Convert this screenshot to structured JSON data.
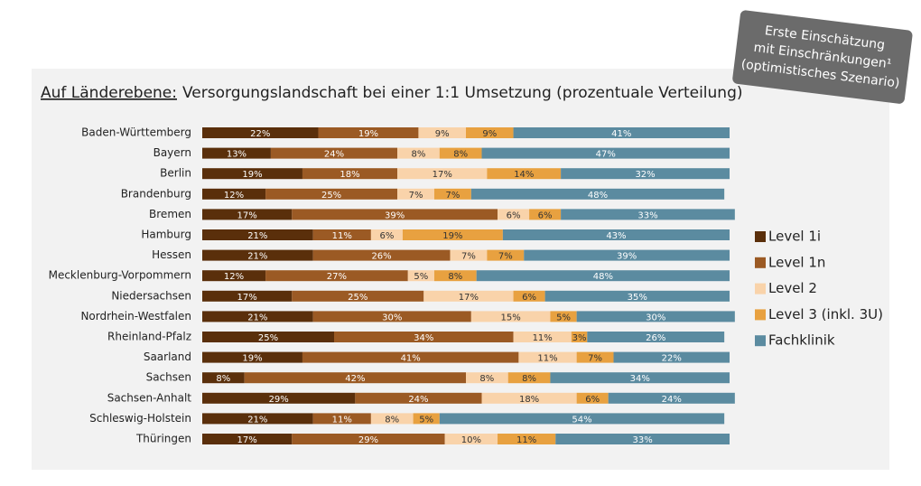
{
  "badge": {
    "lines": [
      "Erste Einschätzung",
      "mit Einschränkungen¹",
      "(optimistisches Szenario)"
    ]
  },
  "chart_data": {
    "type": "stacked-bar-horizontal",
    "title_lead": "Auf Länderebene:",
    "title": "Versorgungslandschaft bei einer 1:1 Umsetzung (prozentuale Verteilung)",
    "xlim": [
      0,
      100
    ],
    "categories": [
      "Baden-Württemberg",
      "Bayern",
      "Berlin",
      "Brandenburg",
      "Bremen",
      "Hamburg",
      "Hessen",
      "Mecklenburg-Vorpommern",
      "Niedersachsen",
      "Nordrhein-Westfalen",
      "Rheinland-Pfalz",
      "Saarland",
      "Sachsen",
      "Sachsen-Anhalt",
      "Schleswig-Holstein",
      "Thüringen"
    ],
    "series": [
      {
        "name": "Level 1i",
        "color": "#5a2f0b",
        "values": [
          22,
          13,
          19,
          12,
          17,
          21,
          21,
          12,
          17,
          21,
          25,
          19,
          8,
          29,
          21,
          17
        ],
        "value_labels": [
          "22%",
          "13%",
          "19%",
          "12%",
          "17%",
          "21%",
          "21%",
          "12%",
          "17%",
          "21%",
          "25%",
          "19%",
          "8%",
          "29%",
          "21%",
          "17%"
        ]
      },
      {
        "name": "Level 1n",
        "color": "#9b5a24",
        "values": [
          19,
          24,
          18,
          25,
          39,
          11,
          26,
          27,
          25,
          30,
          34,
          41,
          42,
          24,
          11,
          29
        ],
        "value_labels": [
          "19%",
          "24%",
          "18%",
          "25%",
          "39%",
          "11%",
          "26%",
          "27%",
          "25%",
          "30%",
          "34%",
          "41%",
          "42%",
          "24%",
          "11%",
          "29%"
        ]
      },
      {
        "name": "Level 2",
        "color": "#f9d3aa",
        "values": [
          9,
          8,
          17,
          7,
          6,
          6,
          7,
          5,
          17,
          15,
          11,
          11,
          8,
          18,
          8,
          10
        ],
        "value_labels": [
          "9%",
          "8%",
          "17%",
          "7%",
          "6%",
          "6%",
          "7%",
          "5%",
          "17%",
          "15%",
          "11%",
          "11%",
          "8%",
          "18%",
          "8%",
          "10%"
        ]
      },
      {
        "name": "Level 3 (inkl. 3U)",
        "color": "#e8a140",
        "values": [
          9,
          8,
          14,
          7,
          6,
          19,
          7,
          8,
          6,
          5,
          3,
          7,
          8,
          6,
          5,
          11
        ],
        "value_labels": [
          "9%",
          "8%",
          "14%",
          "7%",
          "6%",
          "19%",
          "7%",
          "8%",
          "6%",
          "5%",
          "3%",
          "7%",
          "8%",
          "6%",
          "5%",
          "11%"
        ]
      },
      {
        "name": "Fachklinik",
        "color": "#5b8ba0",
        "values": [
          41,
          47,
          32,
          48,
          33,
          43,
          39,
          48,
          35,
          30,
          26,
          22,
          34,
          24,
          54,
          33
        ],
        "value_labels": [
          "41%",
          "47%",
          "32%",
          "48%",
          "33%",
          "43%",
          "39%",
          "48%",
          "35%",
          "30%",
          "26%",
          "22%",
          "34%",
          "24%",
          "54%",
          "33%"
        ]
      }
    ]
  }
}
